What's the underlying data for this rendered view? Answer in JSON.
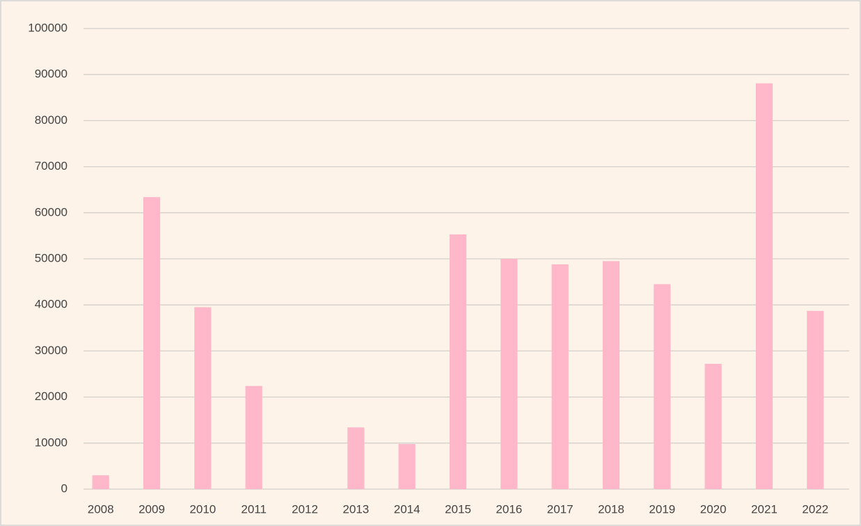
{
  "chart_data": {
    "type": "bar",
    "categories": [
      "2008",
      "2009",
      "2010",
      "2011",
      "2012",
      "2013",
      "2014",
      "2015",
      "2016",
      "2017",
      "2018",
      "2019",
      "2020",
      "2021",
      "2022"
    ],
    "values": [
      3000,
      63400,
      39500,
      22400,
      0,
      13400,
      9800,
      55300,
      50000,
      48800,
      49500,
      44500,
      27200,
      88100,
      38700
    ],
    "color": "#ffb7c9",
    "ylim": [
      0,
      100000
    ],
    "yticks": [
      0,
      10000,
      20000,
      30000,
      40000,
      50000,
      60000,
      70000,
      80000,
      90000,
      100000
    ],
    "grid": true
  }
}
